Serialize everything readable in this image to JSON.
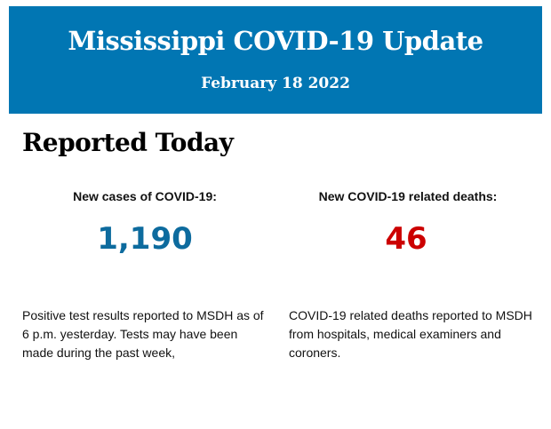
{
  "header": {
    "title": "Mississippi COVID-19 Update",
    "date": "February 18 2022",
    "background_color": "#0176b3"
  },
  "section": {
    "heading": "Reported Today"
  },
  "stats": [
    {
      "label": "New cases of COVID-19:",
      "value": "1,190",
      "color": "#0d6b9e",
      "description": "Positive test results reported to MSDH as of 6 p.m. yesterday. Tests may have been made during the past week,"
    },
    {
      "label": "New COVID-19 related deaths:",
      "value": "46",
      "color": "#cc0000",
      "description": "COVID-19 related deaths reported to MSDH from hospitals, medical examiners and coroners."
    }
  ]
}
